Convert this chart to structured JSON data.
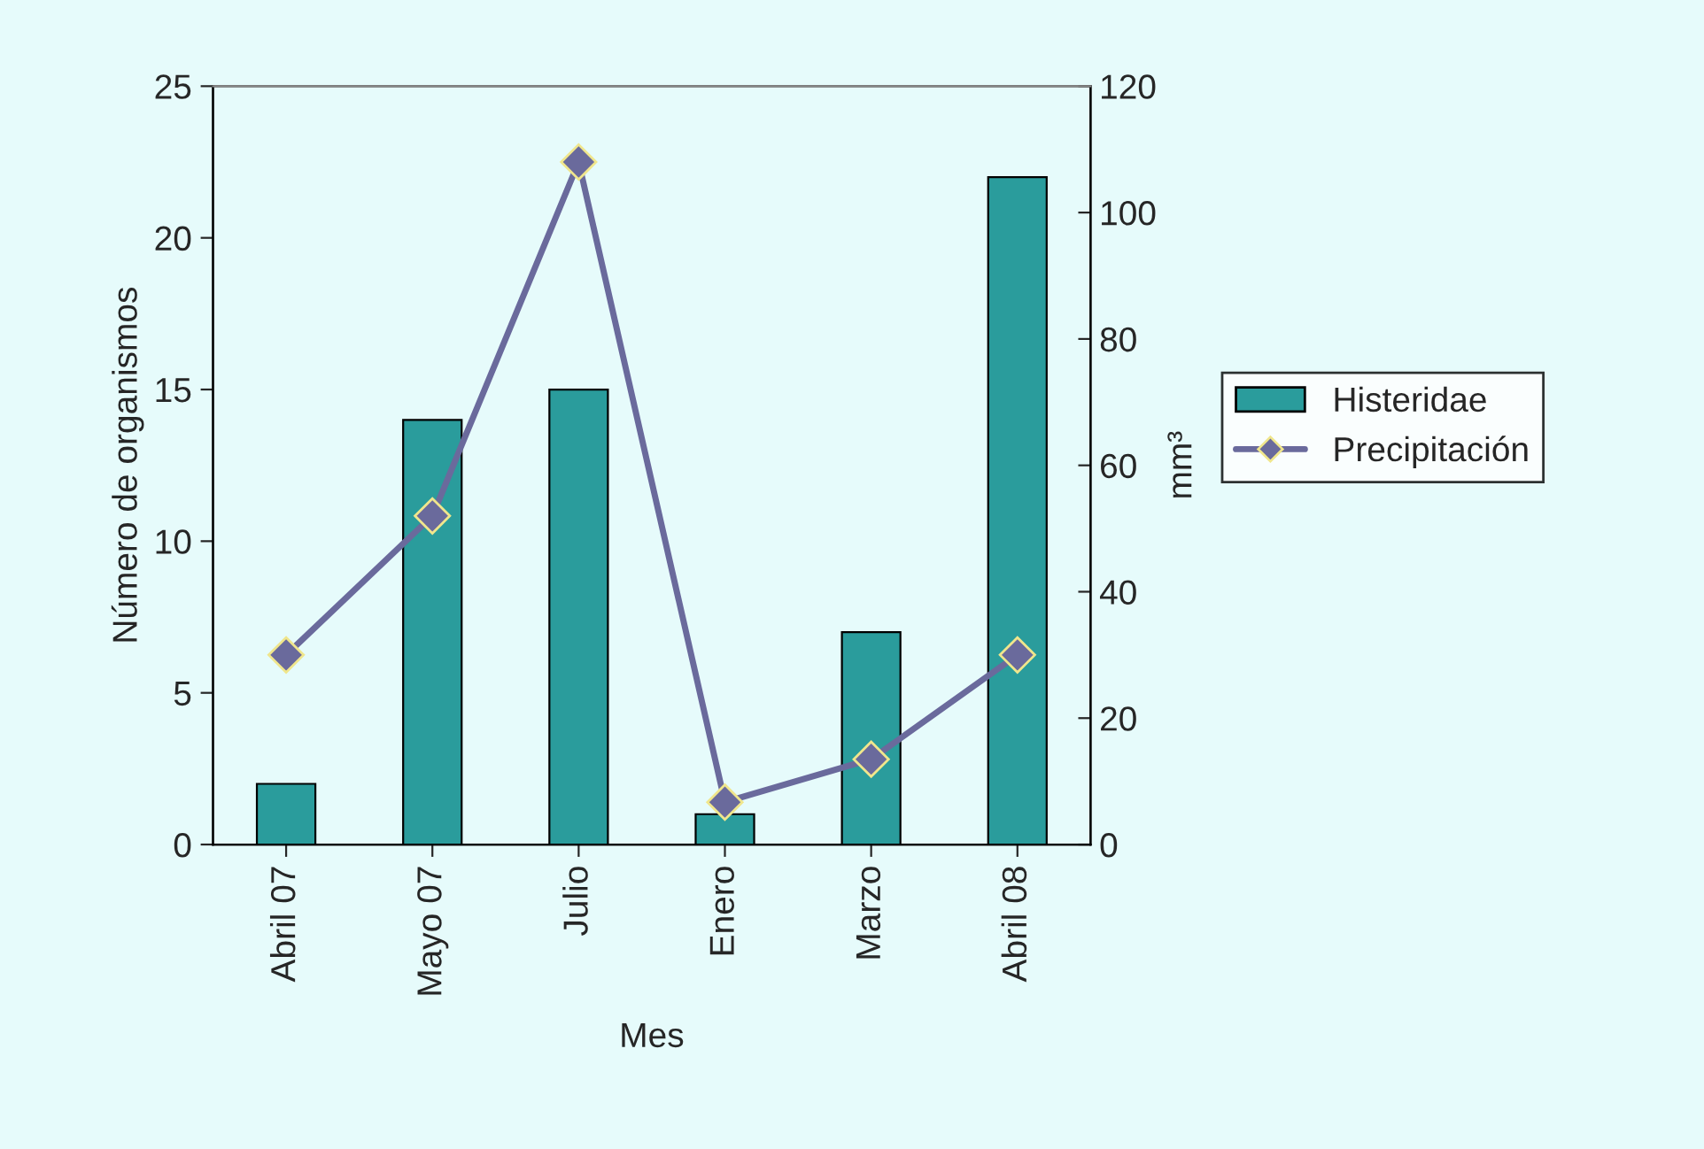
{
  "chart_data": {
    "type": "bar",
    "xlabel": "Mes",
    "ylabel": "Número de organismos",
    "y2label": "mm³",
    "categories": [
      "Abril 07",
      "Mayo 07",
      "Julio",
      "Enero",
      "Marzo",
      "Abril 08"
    ],
    "series": [
      {
        "name": "Histeridae",
        "color": "#2a9c9c",
        "values": [
          2,
          14,
          15,
          1,
          7,
          22
        ]
      },
      {
        "name": "Precipitación",
        "type": "line",
        "axis": "y2",
        "color": "#6a6a9c",
        "marker": "diamond",
        "values": [
          30,
          52,
          108,
          6.7,
          13.5,
          30
        ]
      }
    ],
    "ylim": [
      0,
      25
    ],
    "yticks": [
      0,
      5,
      10,
      15,
      20,
      25
    ],
    "y2lim": [
      0,
      120
    ],
    "y2ticks": [
      0,
      20,
      40,
      60,
      80,
      100,
      120
    ],
    "grid": false,
    "legend": "right"
  }
}
